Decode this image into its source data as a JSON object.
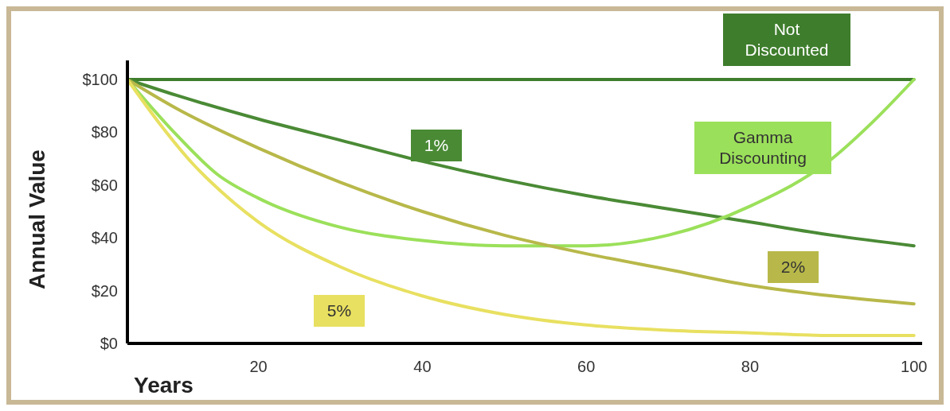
{
  "chart_data": {
    "type": "line",
    "xlabel": "Years",
    "ylabel": "Annual Value",
    "xlim": [
      4,
      101
    ],
    "xticks": [
      20,
      40,
      60,
      80,
      100
    ],
    "ylim": [
      0,
      100
    ],
    "yticks": [
      {
        "value": 0,
        "label": "$0"
      },
      {
        "value": 20,
        "label": "$20"
      },
      {
        "value": 40,
        "label": "$40"
      },
      {
        "value": 60,
        "label": "$60"
      },
      {
        "value": 80,
        "label": "$80"
      },
      {
        "value": 100,
        "label": "$100"
      }
    ],
    "grid": false,
    "marker": "none",
    "line_style": "solid",
    "series": [
      {
        "name": "Not Discounted",
        "color": "#3e7d2c",
        "x": [
          4,
          100
        ],
        "values": [
          100,
          100
        ]
      },
      {
        "name": "1%",
        "color": "#4a8a35",
        "x": [
          4,
          10,
          20,
          30,
          40,
          50,
          60,
          70,
          80,
          90,
          100
        ],
        "values": [
          100,
          94,
          85,
          77,
          69,
          62,
          56,
          51,
          46,
          41,
          37
        ]
      },
      {
        "name": "Gamma Discounting",
        "color": "#9be05a",
        "x": [
          4,
          10,
          15,
          20,
          30,
          40,
          50,
          60,
          70,
          80,
          90,
          95,
          100
        ],
        "values": [
          100,
          79,
          64,
          55,
          44,
          39,
          37,
          37,
          41,
          52,
          70,
          84,
          100
        ]
      },
      {
        "name": "2%",
        "color": "#b8b84a",
        "x": [
          4,
          10,
          20,
          30,
          40,
          50,
          60,
          70,
          80,
          90,
          100
        ],
        "values": [
          100,
          89,
          74,
          61,
          50,
          41,
          34,
          28,
          22,
          18,
          15
        ]
      },
      {
        "name": "5%",
        "color": "#e8e060",
        "x": [
          4,
          8,
          12,
          16,
          20,
          30,
          40,
          50,
          60,
          70,
          80,
          90,
          100
        ],
        "values": [
          100,
          83,
          68,
          56,
          46,
          29,
          18,
          11,
          7,
          5,
          4,
          3,
          3
        ]
      }
    ]
  }
}
